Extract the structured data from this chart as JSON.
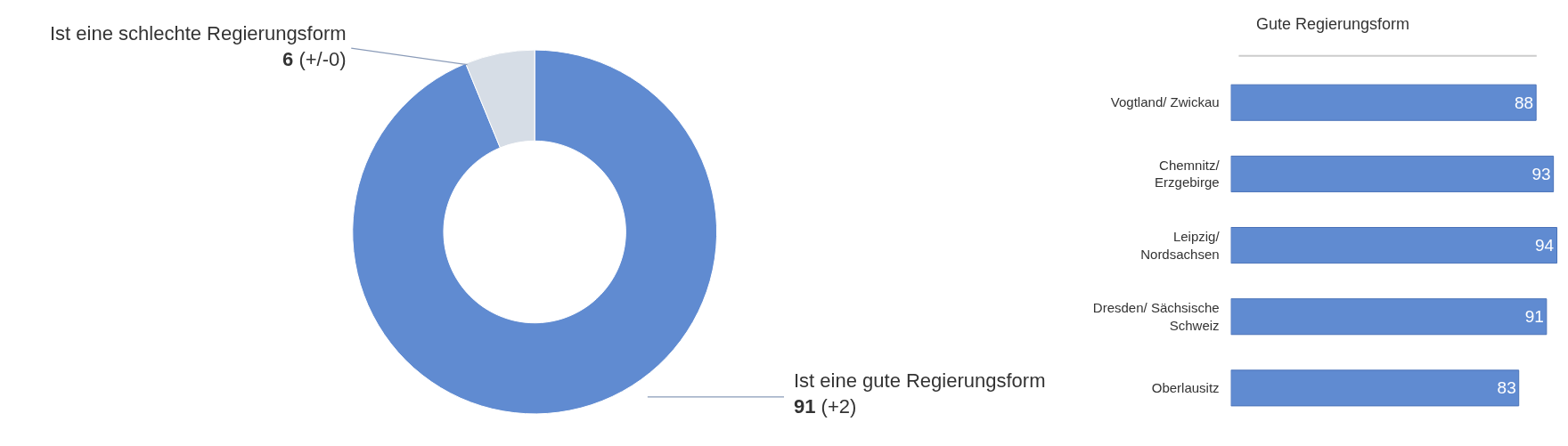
{
  "chart_data": [
    {
      "type": "donut",
      "categories": [
        "Ist eine gute Regierungsform",
        "Ist eine schlechte Regierungsform"
      ],
      "values": [
        91,
        6
      ],
      "colors": [
        "#608bd1",
        "#d6dde6"
      ],
      "value_labels": [
        "91 (+2)",
        "6 (+/-0)"
      ],
      "legend": false
    },
    {
      "type": "bar",
      "orientation": "horizontal",
      "title": "Gute Regierungsform",
      "categories": [
        "Vogtland/ Zwickau",
        "Chemnitz/ Erzgebirge",
        "Leipzig/ Nordsachsen",
        "Dresden/ Sächsische Schweiz",
        "Oberlausitz"
      ],
      "values": [
        88,
        93,
        94,
        91,
        83
      ],
      "color": "#608bd1",
      "data_labels": true,
      "legend": false
    }
  ]
}
